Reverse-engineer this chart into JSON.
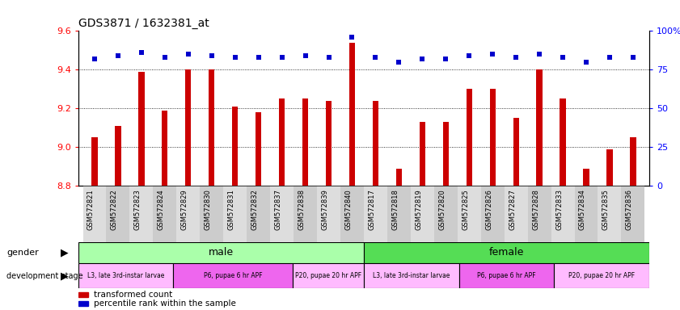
{
  "title": "GDS3871 / 1632381_at",
  "samples": [
    "GSM572821",
    "GSM572822",
    "GSM572823",
    "GSM572824",
    "GSM572829",
    "GSM572830",
    "GSM572831",
    "GSM572832",
    "GSM572837",
    "GSM572838",
    "GSM572839",
    "GSM572840",
    "GSM572817",
    "GSM572818",
    "GSM572819",
    "GSM572820",
    "GSM572825",
    "GSM572826",
    "GSM572827",
    "GSM572828",
    "GSM572833",
    "GSM572834",
    "GSM572835",
    "GSM572836"
  ],
  "transformed_count": [
    9.05,
    9.11,
    9.39,
    9.19,
    9.4,
    9.4,
    9.21,
    9.18,
    9.25,
    9.25,
    9.24,
    9.54,
    9.24,
    8.89,
    9.13,
    9.13,
    9.3,
    9.3,
    9.15,
    9.4,
    9.25,
    8.89,
    8.99,
    9.05
  ],
  "percentile_rank": [
    82,
    84,
    86,
    83,
    85,
    84,
    83,
    83,
    83,
    84,
    83,
    96,
    83,
    80,
    82,
    82,
    84,
    85,
    83,
    85,
    83,
    80,
    83,
    83
  ],
  "ylim_left": [
    8.8,
    9.6
  ],
  "ylim_right": [
    0,
    100
  ],
  "yticks_left": [
    8.8,
    9.0,
    9.2,
    9.4,
    9.6
  ],
  "yticks_right": [
    0,
    25,
    50,
    75,
    100
  ],
  "bar_color": "#cc0000",
  "dot_color": "#0000cc",
  "gender_groups": [
    {
      "label": "male",
      "start": 0,
      "end": 12,
      "color": "#aaffaa"
    },
    {
      "label": "female",
      "start": 12,
      "end": 24,
      "color": "#55dd55"
    }
  ],
  "dev_stage_groups": [
    {
      "label": "L3, late 3rd-instar larvae",
      "start": 0,
      "end": 4,
      "color": "#ffbbff"
    },
    {
      "label": "P6, pupae 6 hr APF",
      "start": 4,
      "end": 9,
      "color": "#ee66ee"
    },
    {
      "label": "P20, pupae 20 hr APF",
      "start": 9,
      "end": 12,
      "color": "#ffbbff"
    },
    {
      "label": "L3, late 3rd-instar larvae",
      "start": 12,
      "end": 16,
      "color": "#ffbbff"
    },
    {
      "label": "P6, pupae 6 hr APF",
      "start": 16,
      "end": 20,
      "color": "#ee66ee"
    },
    {
      "label": "P20, pupae 20 hr APF",
      "start": 20,
      "end": 24,
      "color": "#ffbbff"
    }
  ],
  "xticklabel_bg_colors": [
    "#dddddd",
    "#cccccc"
  ],
  "bar_width": 0.25
}
